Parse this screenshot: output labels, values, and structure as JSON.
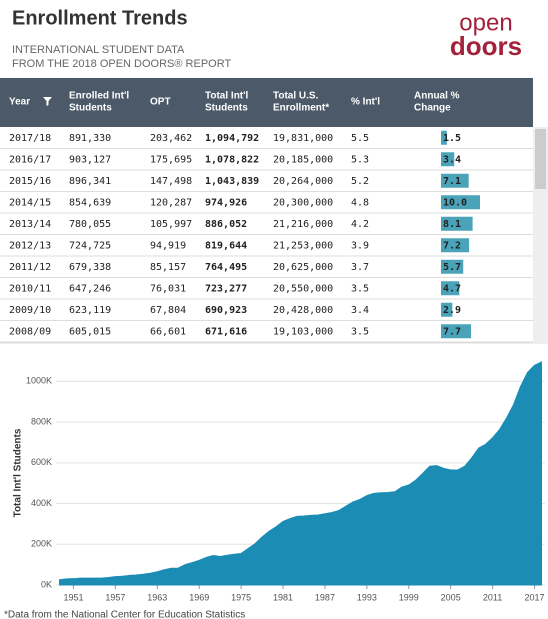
{
  "header": {
    "title": "Enrollment Trends",
    "subtitle_lines": [
      "INTERNATIONAL STUDENT DATA",
      "FROM THE 2018 OPEN DOORS® REPORT"
    ],
    "logo": [
      "open",
      "doors"
    ]
  },
  "table": {
    "columns": [
      [
        "Year"
      ],
      [
        "Enrolled Int'l",
        "Students"
      ],
      [
        "OPT"
      ],
      [
        "Total Int'l",
        "Students"
      ],
      [
        "Total U.S.",
        "Enrollment*"
      ],
      [
        "% Int'l"
      ],
      [
        "Annual %",
        "Change"
      ]
    ],
    "rows": [
      [
        "2017/18",
        "891,330",
        "203,462",
        "1,094,792",
        "19,831,000",
        "5.5"
      ],
      [
        "2016/17",
        "903,127",
        "175,695",
        "1,078,822",
        "20,185,000",
        "5.3"
      ],
      [
        "2015/16",
        "896,341",
        "147,498",
        "1,043,839",
        "20,264,000",
        "5.2"
      ],
      [
        "2014/15",
        "854,639",
        "120,287",
        "974,926",
        "20,300,000",
        "4.8"
      ],
      [
        "2013/14",
        "780,055",
        "105,997",
        "886,052",
        "21,216,000",
        "4.2"
      ],
      [
        "2012/13",
        "724,725",
        "94,919",
        "819,644",
        "21,253,000",
        "3.9"
      ],
      [
        "2011/12",
        "679,338",
        "85,157",
        "764,495",
        "20,625,000",
        "3.7"
      ],
      [
        "2010/11",
        "647,246",
        "76,031",
        "723,277",
        "20,550,000",
        "3.5"
      ],
      [
        "2009/10",
        "623,119",
        "67,804",
        "690,923",
        "20,428,000",
        "3.4"
      ],
      [
        "2008/09",
        "605,015",
        "66,601",
        "671,616",
        "19,103,000",
        "3.5"
      ]
    ],
    "annual_change": {
      "values": [
        1.5,
        3.4,
        7.1,
        10.0,
        8.1,
        7.2,
        5.7,
        4.7,
        2.9,
        7.7
      ],
      "value_labels": [
        "1.5",
        "3.4",
        "7.1",
        "10.0",
        "8.1",
        "7.2",
        "5.7",
        "4.7",
        "2.9",
        "7.7"
      ],
      "color": "#4aa3b8"
    }
  },
  "chart_data": {
    "type": "area",
    "ylabel": "Total Int'l Students",
    "color": "#1b8db5",
    "grid": true,
    "x": [
      1949,
      1950,
      1951,
      1952,
      1953,
      1954,
      1955,
      1956,
      1957,
      1958,
      1959,
      1960,
      1961,
      1962,
      1963,
      1964,
      1965,
      1966,
      1967,
      1968,
      1969,
      1970,
      1971,
      1972,
      1973,
      1974,
      1975,
      1976,
      1977,
      1978,
      1979,
      1980,
      1981,
      1982,
      1983,
      1984,
      1985,
      1986,
      1987,
      1988,
      1989,
      1990,
      1991,
      1992,
      1993,
      1994,
      1995,
      1996,
      1997,
      1998,
      1999,
      2000,
      2001,
      2002,
      2003,
      2004,
      2005,
      2006,
      2007,
      2008,
      2009,
      2010,
      2011,
      2012,
      2013,
      2014,
      2015,
      2016,
      2017,
      2018
    ],
    "values": [
      26000,
      30000,
      31000,
      34000,
      34000,
      34000,
      34000,
      37000,
      41000,
      43000,
      47000,
      49000,
      53000,
      58000,
      65000,
      75000,
      82000,
      83000,
      100000,
      110000,
      121000,
      135000,
      145000,
      140000,
      146000,
      151000,
      155000,
      179000,
      203000,
      236000,
      264000,
      286000,
      312000,
      326000,
      337000,
      339000,
      342000,
      344000,
      350000,
      356000,
      366000,
      387000,
      408000,
      420000,
      439000,
      450000,
      453000,
      454000,
      458000,
      481000,
      491000,
      515000,
      548000,
      583000,
      586000,
      573000,
      565000,
      565000,
      583000,
      624000,
      672000,
      691000,
      723000,
      764000,
      820000,
      886000,
      975000,
      1044000,
      1079000,
      1095000
    ],
    "xlim": [
      1948.5,
      2018.5
    ],
    "xticks": [
      1951,
      1957,
      1963,
      1969,
      1975,
      1981,
      1987,
      1993,
      1999,
      2005,
      2011,
      2017
    ],
    "ylim": [
      0,
      1100000
    ],
    "yticks": [
      {
        "value": 0,
        "label": "0K"
      },
      {
        "value": 200000,
        "label": "200K"
      },
      {
        "value": 400000,
        "label": "400K"
      },
      {
        "value": 600000,
        "label": "600K"
      },
      {
        "value": 800000,
        "label": "800K"
      },
      {
        "value": 1000000,
        "label": "1000K"
      }
    ]
  },
  "footnote": "*Data from the National Center for Education Statistics"
}
